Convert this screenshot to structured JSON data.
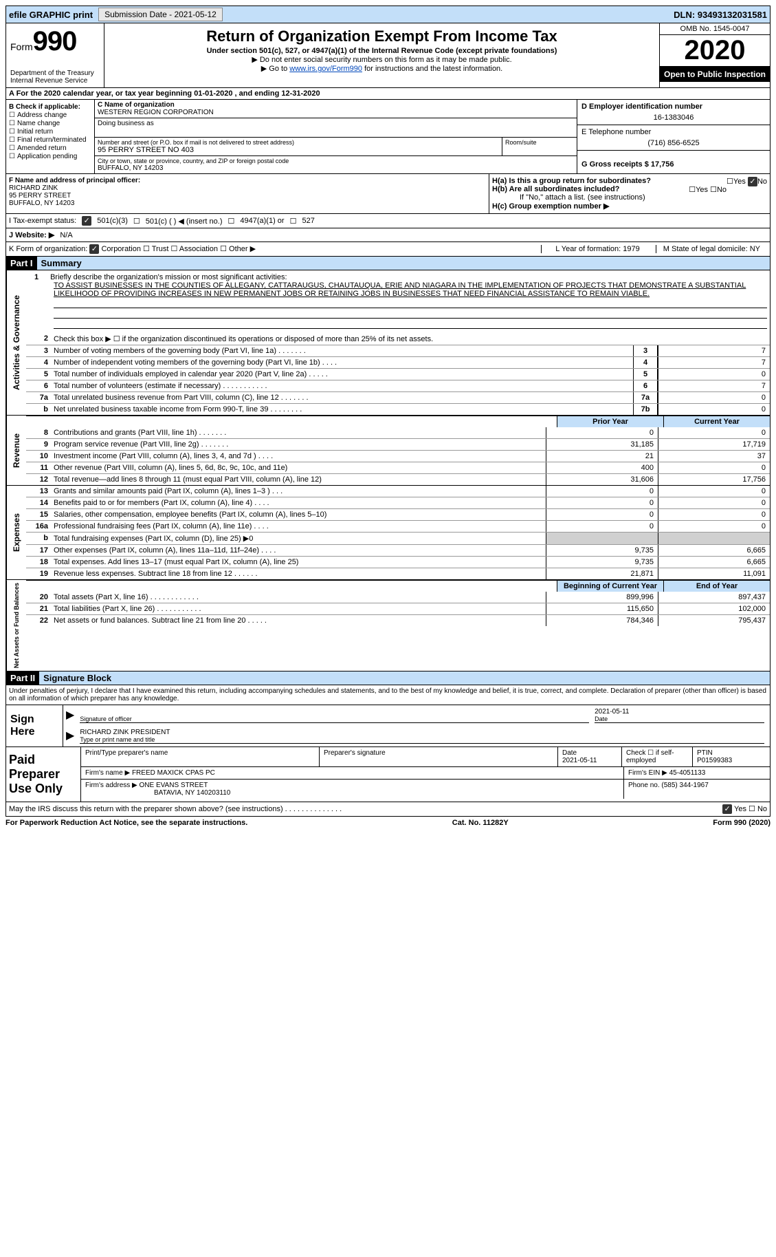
{
  "topbar": {
    "efile": "efile GRAPHIC print",
    "submission_label": "Submission Date - 2021-05-12",
    "dln": "DLN: 93493132031581"
  },
  "header": {
    "form_label": "Form",
    "form_num": "990",
    "dept": "Department of the Treasury\nInternal Revenue Service",
    "title": "Return of Organization Exempt From Income Tax",
    "subtitle": "Under section 501(c), 527, or 4947(a)(1) of the Internal Revenue Code (except private foundations)",
    "note1": "▶ Do not enter social security numbers on this form as it may be made public.",
    "note2_pre": "▶ Go to ",
    "note2_link": "www.irs.gov/Form990",
    "note2_post": " for instructions and the latest information.",
    "omb": "OMB No. 1545-0047",
    "year": "2020",
    "inspection": "Open to Public Inspection"
  },
  "period": "A For the 2020 calendar year, or tax year beginning 01-01-2020    , and ending 12-31-2020",
  "checkboxes": {
    "title": "B Check if applicable:",
    "items": [
      "Address change",
      "Name change",
      "Initial return",
      "Final return/terminated",
      "Amended return",
      "Application pending"
    ]
  },
  "entity": {
    "c_label": "C Name of organization",
    "name": "WESTERN REGION CORPORATION",
    "dba_label": "Doing business as",
    "street_label": "Number and street (or P.O. box if mail is not delivered to street address)",
    "street": "95 PERRY STREET NO 403",
    "room_label": "Room/suite",
    "city_label": "City or town, state or province, country, and ZIP or foreign postal code",
    "city": "BUFFALO, NY  14203",
    "d_label": "D Employer identification number",
    "ein": "16-1383046",
    "e_label": "E Telephone number",
    "phone": "(716) 856-6525",
    "g_label": "G Gross receipts $ 17,756"
  },
  "f": {
    "label": "F  Name and address of principal officer:",
    "name": "RICHARD ZINK",
    "street": "95 PERRY STREET",
    "city": "BUFFALO, NY  14203"
  },
  "h": {
    "a": "H(a)  Is this a group return for subordinates?",
    "a_ans_yes": "Yes",
    "a_ans_no": "No",
    "b": "H(b)  Are all subordinates included?",
    "b_note": "If \"No,\" attach a list. (see instructions)",
    "c": "H(c)  Group exemption number ▶"
  },
  "i": {
    "label": "I   Tax-exempt status:",
    "opts": [
      "501(c)(3)",
      "501(c) (  ) ◀ (insert no.)",
      "4947(a)(1) or",
      "527"
    ]
  },
  "j": {
    "label": "J   Website: ▶",
    "val": "N/A"
  },
  "k": {
    "label": "K Form of organization:",
    "opts": [
      "Corporation",
      "Trust",
      "Association",
      "Other ▶"
    ],
    "l": "L Year of formation: 1979",
    "m": "M State of legal domicile: NY"
  },
  "part1": {
    "header": "Part I",
    "title": "Summary"
  },
  "mission": {
    "num": "1",
    "label": "Briefly describe the organization's mission or most significant activities:",
    "text": "TO ASSIST BUSINESSES IN THE COUNTIES OF ALLEGANY, CATTARAUGUS, CHAUTAUQUA, ERIE AND NIAGARA IN THE IMPLEMENTATION OF PROJECTS THAT DEMONSTRATE A SUBSTANTIAL LIKELIHOOD OF PROVIDING INCREASES IN NEW PERMANENT JOBS OR RETAINING JOBS IN BUSINESSES THAT NEED FINANCIAL ASSISTANCE TO REMAIN VIABLE."
  },
  "gov_lines": [
    {
      "n": "2",
      "d": "Check this box ▶ ☐  if the organization discontinued its operations or disposed of more than 25% of its net assets."
    },
    {
      "n": "3",
      "d": "Number of voting members of the governing body (Part VI, line 1a)  .   .   .   .   .   .   .",
      "b": "3",
      "v": "7"
    },
    {
      "n": "4",
      "d": "Number of independent voting members of the governing body (Part VI, line 1b)  .   .   .   .",
      "b": "4",
      "v": "7"
    },
    {
      "n": "5",
      "d": "Total number of individuals employed in calendar year 2020 (Part V, line 2a)  .   .   .   .   .",
      "b": "5",
      "v": "0"
    },
    {
      "n": "6",
      "d": "Total number of volunteers (estimate if necessary)  .   .   .   .   .   .   .   .   .   .   .",
      "b": "6",
      "v": "7"
    },
    {
      "n": "7a",
      "d": "Total unrelated business revenue from Part VIII, column (C), line 12  .   .   .   .   .   .   .",
      "b": "7a",
      "v": "0"
    },
    {
      "n": "b",
      "d": "Net unrelated business taxable income from Form 990-T, line 39  .   .   .   .   .   .   .   .",
      "b": "7b",
      "v": "0"
    }
  ],
  "rev_hdr": {
    "py": "Prior Year",
    "cy": "Current Year"
  },
  "rev_lines": [
    {
      "n": "8",
      "d": "Contributions and grants (Part VIII, line 1h)  .   .   .   .   .   .   .",
      "py": "0",
      "cy": "0"
    },
    {
      "n": "9",
      "d": "Program service revenue (Part VIII, line 2g)  .   .   .   .   .   .   .",
      "py": "31,185",
      "cy": "17,719"
    },
    {
      "n": "10",
      "d": "Investment income (Part VIII, column (A), lines 3, 4, and 7d )  .   .   .   .",
      "py": "21",
      "cy": "37"
    },
    {
      "n": "11",
      "d": "Other revenue (Part VIII, column (A), lines 5, 6d, 8c, 9c, 10c, and 11e)",
      "py": "400",
      "cy": "0"
    },
    {
      "n": "12",
      "d": "Total revenue—add lines 8 through 11 (must equal Part VIII, column (A), line 12)",
      "py": "31,606",
      "cy": "17,756"
    }
  ],
  "exp_lines": [
    {
      "n": "13",
      "d": "Grants and similar amounts paid (Part IX, column (A), lines 1–3 ) .   .   .",
      "py": "0",
      "cy": "0"
    },
    {
      "n": "14",
      "d": "Benefits paid to or for members (Part IX, column (A), line 4)  .   .   .   .",
      "py": "0",
      "cy": "0"
    },
    {
      "n": "15",
      "d": "Salaries, other compensation, employee benefits (Part IX, column (A), lines 5–10)",
      "py": "0",
      "cy": "0"
    },
    {
      "n": "16a",
      "d": "Professional fundraising fees (Part IX, column (A), line 11e)  .   .   .   .",
      "py": "0",
      "cy": "0"
    },
    {
      "n": "b",
      "d": "Total fundraising expenses (Part IX, column (D), line 25) ▶0",
      "py": "",
      "cy": "",
      "shade": true
    },
    {
      "n": "17",
      "d": "Other expenses (Part IX, column (A), lines 11a–11d, 11f–24e)  .   .   .   .",
      "py": "9,735",
      "cy": "6,665"
    },
    {
      "n": "18",
      "d": "Total expenses. Add lines 13–17 (must equal Part IX, column (A), line 25)",
      "py": "9,735",
      "cy": "6,665"
    },
    {
      "n": "19",
      "d": "Revenue less expenses. Subtract line 18 from line 12  .   .   .   .   .   .",
      "py": "21,871",
      "cy": "11,091"
    }
  ],
  "net_hdr": {
    "py": "Beginning of Current Year",
    "cy": "End of Year"
  },
  "net_lines": [
    {
      "n": "20",
      "d": "Total assets (Part X, line 16)  .   .   .   .   .   .   .   .   .   .   .   .",
      "py": "899,996",
      "cy": "897,437"
    },
    {
      "n": "21",
      "d": "Total liabilities (Part X, line 26) .   .   .   .   .   .   .   .   .   .   .",
      "py": "115,650",
      "cy": "102,000"
    },
    {
      "n": "22",
      "d": "Net assets or fund balances. Subtract line 21 from line 20  .   .   .   .   .",
      "py": "784,346",
      "cy": "795,437"
    }
  ],
  "part2": {
    "header": "Part II",
    "title": "Signature Block"
  },
  "perjury": "Under penalties of perjury, I declare that I have examined this return, including accompanying schedules and statements, and to the best of my knowledge and belief, it is true, correct, and complete. Declaration of preparer (other than officer) is based on all information of which preparer has any knowledge.",
  "sign": {
    "here": "Sign Here",
    "date": "2021-05-11",
    "sig_label": "Signature of officer",
    "date_label": "Date",
    "name": "RICHARD ZINK  PRESIDENT",
    "name_label": "Type or print name and title"
  },
  "prep": {
    "label": "Paid Preparer Use Only",
    "h1": "Print/Type preparer's name",
    "h2": "Preparer's signature",
    "h3_date": "Date",
    "h3_val": "2021-05-11",
    "h4": "Check ☐ if self-employed",
    "h5": "PTIN",
    "ptin": "P01599383",
    "firm_name_label": "Firm's name    ▶",
    "firm_name": "FREED MAXICK CPAS PC",
    "firm_ein_label": "Firm's EIN ▶",
    "firm_ein": "45-4051133",
    "firm_addr_label": "Firm's address ▶",
    "firm_addr1": "ONE EVANS STREET",
    "firm_addr2": "BATAVIA, NY  140203110",
    "phone_label": "Phone no.",
    "phone": "(585) 344-1967"
  },
  "discuss": {
    "q": "May the IRS discuss this return with the preparer shown above? (see instructions)  .   .   .   .   .   .   .   .   .   .   .   .   .   .",
    "yes": "Yes",
    "no": "No"
  },
  "footer": {
    "left": "For Paperwork Reduction Act Notice, see the separate instructions.",
    "mid": "Cat. No. 11282Y",
    "right": "Form 990 (2020)"
  },
  "vlabels": {
    "gov": "Activities & Governance",
    "rev": "Revenue",
    "exp": "Expenses",
    "net": "Net Assets or Fund Balances"
  }
}
